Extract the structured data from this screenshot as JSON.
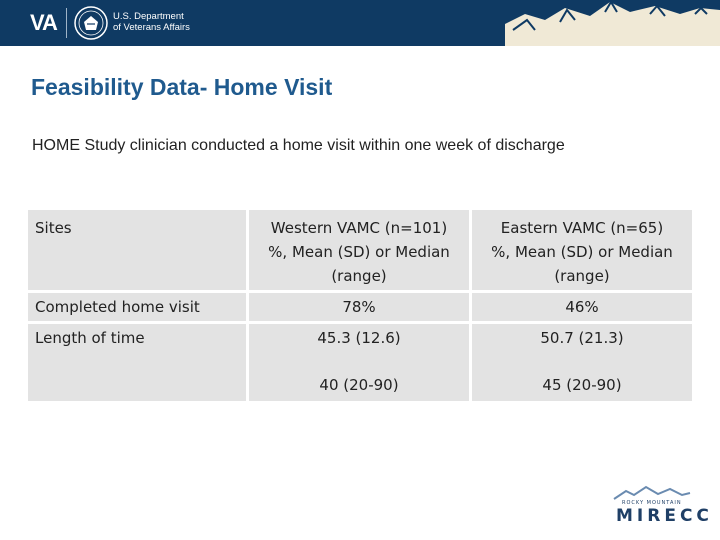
{
  "header": {
    "va_logo": "VA",
    "dept_line1": "U.S. Department",
    "dept_line2": "of Veterans Affairs"
  },
  "slide": {
    "title": "Feasibility Data- Home Visit",
    "subtitle": "HOME Study clinician conducted a home visit within one week of discharge"
  },
  "table": {
    "headers": {
      "sites": "Sites",
      "western": [
        "Western VAMC (n=101)",
        "%, Mean (SD) or Median",
        "(range)"
      ],
      "eastern": [
        "Eastern VAMC (n=65)",
        "%, Mean (SD) or Median",
        "(range)"
      ]
    },
    "rows": [
      {
        "label": "Completed home visit",
        "western": "78%",
        "eastern": "46%"
      },
      {
        "label": "Length of time",
        "western": "45.3 (12.6)",
        "eastern": "50.7 (21.3)"
      },
      {
        "label": "",
        "western": "40 (20-90)",
        "eastern": "45 (20-90)"
      }
    ]
  },
  "footer": {
    "logo_small": "ROCKY MOUNTAIN",
    "logo_big": "MIRECC"
  }
}
